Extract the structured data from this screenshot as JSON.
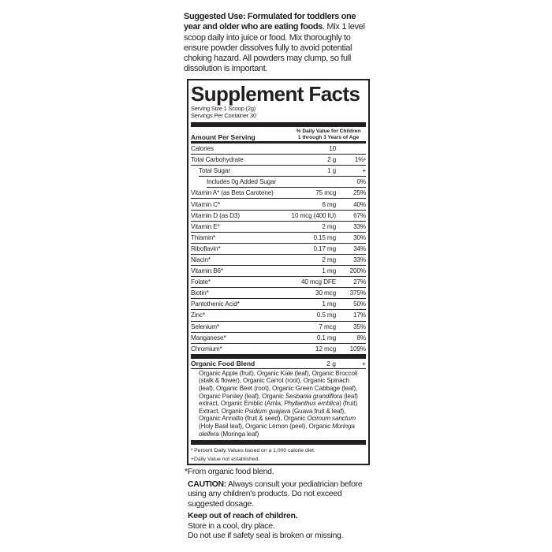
{
  "suggested_use": {
    "bold": "Suggested Use: Formulated for toddlers one year and older who are eating foods",
    "text": ". Mix 1 level scoop daily into juice or food. Mix thoroughly to ensure powder dissolves fully to avoid potential choking hazard. All powders may clump, so full dissolution is important."
  },
  "facts": {
    "title": "Supplement Facts",
    "serving_size": "Serving Size 1 Scoop (2g)",
    "servings_per_container": "Servings Per Container 30",
    "amount_header": "Amount Per Serving",
    "dv_header_1": "% Daily Value for Children",
    "dv_header_2": "1 through 3 Years of Age",
    "rows": [
      {
        "name": "Calories",
        "amount": "10",
        "dv": ""
      },
      {
        "name": "Total Carbohydrate",
        "amount": "2 g",
        "dv": "1%¹"
      },
      {
        "name": "Total Sugar",
        "amount": "1 g",
        "dv": "+"
      },
      {
        "name": "Includes 0g Added Sugar",
        "amount": "",
        "dv": "0%"
      },
      {
        "name": "Vitamin A* (as Beta Carotene)",
        "amount": "75 mcg",
        "dv": "25%"
      },
      {
        "name": "Vitamin C*",
        "amount": "6 mg",
        "dv": "40%"
      },
      {
        "name": "Vitamin D (as D3)",
        "amount": "10 mcg (400 IU)",
        "dv": "67%"
      },
      {
        "name": "Vitamin E*",
        "amount": "2 mg",
        "dv": "33%"
      },
      {
        "name": "Thiamin*",
        "amount": "0.15 mg",
        "dv": "30%"
      },
      {
        "name": "Riboflavin*",
        "amount": "0.17 mg",
        "dv": "34%"
      },
      {
        "name": "Niacin*",
        "amount": "2 mg",
        "dv": "33%"
      },
      {
        "name": "Vitamin B6*",
        "amount": "1 mg",
        "dv": "200%"
      },
      {
        "name": "Folate*",
        "amount": "40 mcg DFE",
        "dv": "27%"
      },
      {
        "name": "Biotin*",
        "amount": "30 mcg",
        "dv": "375%"
      },
      {
        "name": "Pantothenic Acid*",
        "amount": "1 mg",
        "dv": "50%"
      },
      {
        "name": "Zinc*",
        "amount": "0.5 mg",
        "dv": "17%"
      },
      {
        "name": "Selenium*",
        "amount": "7 mcg",
        "dv": "35%"
      },
      {
        "name": "Manganese*",
        "amount": "0.1 mg",
        "dv": "8%"
      },
      {
        "name": "Chromium*",
        "amount": "12 mcg",
        "dv": "109%"
      }
    ],
    "blend": {
      "name": "Organic Food Blend",
      "amount": "2 g",
      "dv": "+"
    },
    "ingredients": [
      {
        "t": "Organic Apple (fruit), Organic Kale (leaf), Organic Broccoli (stalk & flower), Organic Carrot (root), Organic Spinach (leaf), Organic Beet (root), Organic Green Cabbage (leaf), Organic Parsley (leaf), Organic ",
        "i": "Sesbania grandiflora"
      },
      {
        "t": " (leaf) extract, Organic Emblic (Amla, ",
        "i": "Phyllanthus emblica"
      },
      {
        "t": ") (fruit) Extract, Organic ",
        "i": "Psidium guajava"
      },
      {
        "t": " (Guava fruit & leaf), Organic Annatto (fruit & seed), Organic ",
        "i": "Ocimum sanctum"
      },
      {
        "t": " (Holy Basil leaf), Organic Lemon (peel), Organic ",
        "i": "Moringa oleifera"
      },
      {
        "t": " (Moringa leaf)",
        "i": ""
      }
    ],
    "footnote_1": "¹ Percent Daily Values based on a 1,000 calorie diet.",
    "footnote_2": "+Daily Value not established."
  },
  "bottom": {
    "from_blend": "*From organic food blend.",
    "caution_label": "CAUTION:",
    "caution_text": " Always consult your pediatrician before using any children's products. Do not exceed suggested dosage.",
    "keep_out": "Keep out of reach of children.",
    "store": "Store in a cool, dry place.",
    "seal": "Do not use if safety seal is broken or missing."
  }
}
